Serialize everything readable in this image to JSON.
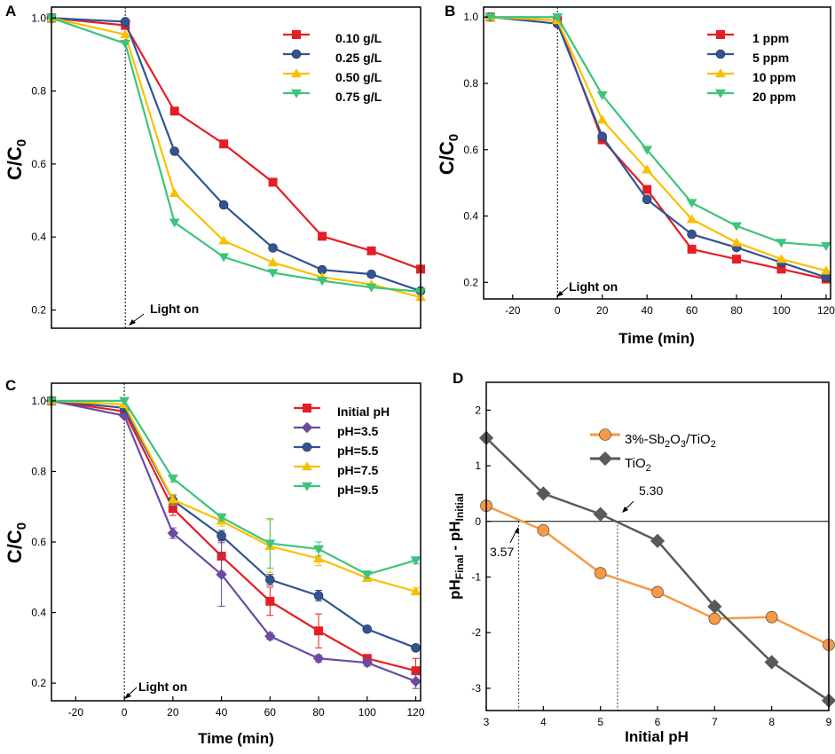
{
  "chart_data": [
    {
      "type": "line",
      "panel": "A",
      "xlabel": "",
      "ylabel": "C/C0",
      "xlim": [
        -30,
        120
      ],
      "ylim": [
        0.15,
        1.03
      ],
      "xticks": [],
      "yticks": [
        0.2,
        0.4,
        0.6,
        0.8,
        1.0
      ],
      "ytick_labels": [
        "0.2",
        "0.4",
        "0.6",
        "0.8",
        "1.0"
      ],
      "vline_x": 0,
      "legend_position": "top-right",
      "annotation": "Light on",
      "series": [
        {
          "name": "0.10 g/L",
          "color": "#e41e25",
          "marker": "square",
          "x": [
            -30,
            0,
            20,
            40,
            60,
            80,
            100,
            120
          ],
          "y": [
            1.0,
            0.98,
            0.745,
            0.655,
            0.55,
            0.402,
            0.362,
            0.312
          ]
        },
        {
          "name": "0.25 g/L",
          "color": "#2f5597",
          "marker": "circle",
          "x": [
            -30,
            0,
            20,
            40,
            60,
            80,
            100,
            120
          ],
          "y": [
            1.0,
            0.99,
            0.635,
            0.488,
            0.37,
            0.31,
            0.298,
            0.252
          ]
        },
        {
          "name": "0.50 g/L",
          "color": "#f9c000",
          "marker": "triangle-up",
          "x": [
            -30,
            0,
            20,
            40,
            60,
            80,
            100,
            120
          ],
          "y": [
            1.0,
            0.955,
            0.52,
            0.39,
            0.33,
            0.29,
            0.27,
            0.235
          ]
        },
        {
          "name": "0.75 g/L",
          "color": "#3dc47a",
          "marker": "triangle-down",
          "x": [
            -30,
            0,
            20,
            40,
            60,
            80,
            100,
            120
          ],
          "y": [
            1.0,
            0.93,
            0.44,
            0.345,
            0.302,
            0.28,
            0.262,
            0.25
          ]
        }
      ]
    },
    {
      "type": "line",
      "panel": "B",
      "xlabel": "Time (min)",
      "ylabel": "C/C0",
      "xlim": [
        -33,
        122
      ],
      "ylim": [
        0.15,
        1.03
      ],
      "xticks": [
        -20,
        0,
        20,
        40,
        60,
        80,
        100,
        120
      ],
      "xtick_labels": [
        "-20",
        "0",
        "20",
        "40",
        "60",
        "80",
        "100",
        "120"
      ],
      "yticks": [
        0.2,
        0.4,
        0.6,
        0.8,
        1.0
      ],
      "ytick_labels": [
        "0.2",
        "0.4",
        "0.6",
        "0.8",
        "1.0"
      ],
      "vline_x": 0,
      "legend_position": "top-right",
      "annotation": "Light on",
      "series": [
        {
          "name": "1 ppm",
          "color": "#e41e25",
          "marker": "square",
          "x": [
            -30,
            0,
            20,
            40,
            60,
            80,
            100,
            120
          ],
          "y": [
            1.0,
            0.99,
            0.63,
            0.48,
            0.3,
            0.27,
            0.24,
            0.21
          ]
        },
        {
          "name": "5 ppm",
          "color": "#2f5597",
          "marker": "circle",
          "x": [
            -30,
            0,
            20,
            40,
            60,
            80,
            100,
            120
          ],
          "y": [
            1.0,
            0.98,
            0.64,
            0.45,
            0.345,
            0.305,
            0.26,
            0.215
          ]
        },
        {
          "name": "10 ppm",
          "color": "#f9c000",
          "marker": "triangle-up",
          "x": [
            -30,
            0,
            20,
            40,
            60,
            80,
            100,
            120
          ],
          "y": [
            1.0,
            0.99,
            0.69,
            0.54,
            0.39,
            0.32,
            0.27,
            0.235
          ]
        },
        {
          "name": "20 ppm",
          "color": "#3dc47a",
          "marker": "triangle-down",
          "x": [
            -30,
            0,
            20,
            40,
            60,
            80,
            100,
            120
          ],
          "y": [
            1.0,
            1.0,
            0.765,
            0.6,
            0.44,
            0.37,
            0.32,
            0.31
          ]
        }
      ]
    },
    {
      "type": "line",
      "panel": "C",
      "xlabel": "Time (min)",
      "ylabel": "C/C0",
      "xlim": [
        -30,
        122
      ],
      "ylim": [
        0.15,
        1.05
      ],
      "xticks": [
        -20,
        0,
        20,
        40,
        60,
        80,
        100,
        120
      ],
      "xtick_labels": [
        "-20",
        "0",
        "20",
        "40",
        "60",
        "80",
        "100",
        "120"
      ],
      "yticks": [
        0.2,
        0.4,
        0.6,
        0.8,
        1.0
      ],
      "ytick_labels": [
        "0.2",
        "0.4",
        "0.6",
        "0.8",
        "1.0"
      ],
      "vline_x": 0,
      "legend_position": "top-right",
      "annotation": "Light on",
      "series": [
        {
          "name": "Initial pH",
          "color": "#e41e25",
          "marker": "square",
          "x": [
            -30,
            0,
            20,
            40,
            60,
            80,
            100,
            120
          ],
          "y": [
            1.0,
            0.97,
            0.695,
            0.56,
            0.432,
            0.348,
            0.27,
            0.235
          ],
          "err": [
            0,
            0,
            0.02,
            0.045,
            0.04,
            0.048,
            0.01,
            0.035
          ]
        },
        {
          "name": "pH=3.5",
          "color": "#6a4ba0",
          "marker": "diamond",
          "x": [
            -30,
            0,
            20,
            40,
            60,
            80,
            100,
            120
          ],
          "y": [
            1.0,
            0.958,
            0.625,
            0.508,
            0.333,
            0.27,
            0.258,
            0.205
          ],
          "err": [
            0,
            0,
            0.015,
            0.09,
            0.01,
            0.01,
            0.01,
            0.02
          ]
        },
        {
          "name": "pH=5.5",
          "color": "#2f5597",
          "marker": "circle",
          "x": [
            -30,
            0,
            20,
            40,
            60,
            80,
            100,
            120
          ],
          "y": [
            1.0,
            0.98,
            0.718,
            0.618,
            0.493,
            0.448,
            0.353,
            0.3
          ],
          "err": [
            0,
            0,
            0.015,
            0.015,
            0.015,
            0.015,
            0.005,
            0.005
          ]
        },
        {
          "name": "pH=7.5",
          "color": "#f9c000",
          "marker": "triangle-up",
          "x": [
            -30,
            0,
            20,
            40,
            60,
            80,
            100,
            120
          ],
          "y": [
            1.0,
            0.99,
            0.72,
            0.66,
            0.588,
            0.553,
            0.498,
            0.46
          ],
          "err": [
            0,
            0,
            0.015,
            0.015,
            0.075,
            0.02,
            0.01,
            0.01
          ]
        },
        {
          "name": "pH=9.5",
          "color": "#3dc47a",
          "marker": "triangle-down",
          "x": [
            -30,
            0,
            20,
            40,
            60,
            80,
            100,
            120
          ],
          "y": [
            1.0,
            1.0,
            0.78,
            0.67,
            0.596,
            0.58,
            0.508,
            0.548
          ],
          "err": [
            0,
            0,
            0.01,
            0.01,
            0.07,
            0.02,
            0.01,
            0.01
          ]
        }
      ]
    },
    {
      "type": "line",
      "panel": "D",
      "xlabel": "Initial pH",
      "ylabel": "pHFinal - pHInitial",
      "xlim": [
        3,
        9
      ],
      "ylim": [
        -3.4,
        2.5
      ],
      "xticks": [
        3,
        4,
        5,
        6,
        7,
        8,
        9
      ],
      "xtick_labels": [
        "3",
        "4",
        "5",
        "6",
        "7",
        "8",
        "9"
      ],
      "yticks": [
        -3,
        -2,
        -1,
        0,
        1,
        2
      ],
      "ytick_labels": [
        "-3",
        "-2",
        "-1",
        "0",
        "1",
        "2"
      ],
      "hline_y": 0,
      "zero_crossings": [
        3.57,
        5.3
      ],
      "annotations": [
        "3.57",
        "5.30"
      ],
      "legend_position": "top-right",
      "series": [
        {
          "name": "3%-Sb2O3/TiO2",
          "color": "#f79a44",
          "marker": "circle",
          "x": [
            3,
            4,
            5,
            6,
            7,
            8,
            9
          ],
          "y": [
            0.28,
            -0.16,
            -0.93,
            -1.27,
            -1.75,
            -1.72,
            -2.22
          ]
        },
        {
          "name": "TiO2",
          "color": "#595959",
          "marker": "diamond",
          "x": [
            3,
            4,
            5,
            6,
            7,
            8,
            9
          ],
          "y": [
            1.5,
            0.5,
            0.13,
            -0.35,
            -1.53,
            -2.53,
            -3.22
          ]
        }
      ]
    }
  ]
}
